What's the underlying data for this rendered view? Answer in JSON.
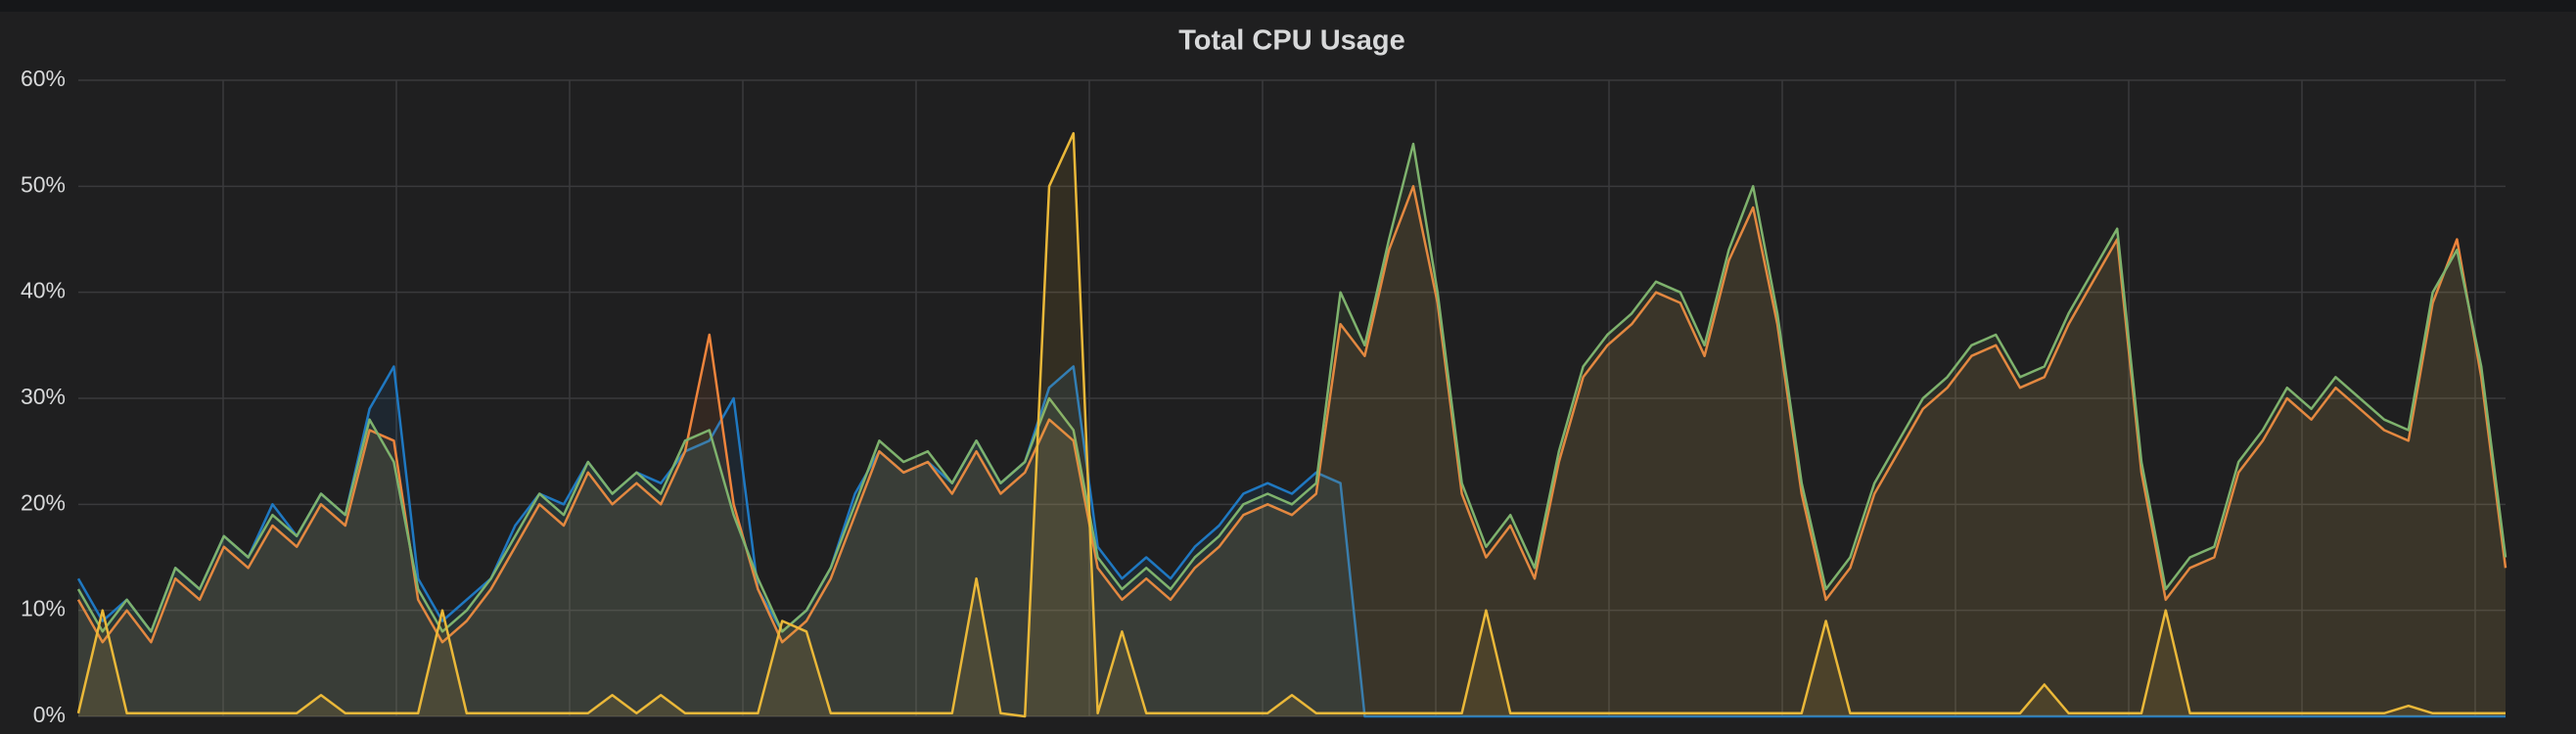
{
  "chart_data": {
    "type": "line",
    "title": "Total CPU Usage",
    "ylim": [
      0,
      60
    ],
    "yticks": [
      {
        "value": 0,
        "label": "0%"
      },
      {
        "value": 10,
        "label": "10%"
      },
      {
        "value": 20,
        "label": "20%"
      },
      {
        "value": 30,
        "label": "30%"
      },
      {
        "value": 40,
        "label": "40%"
      },
      {
        "value": 50,
        "label": "50%"
      },
      {
        "value": 60,
        "label": "60%"
      }
    ],
    "grid": true,
    "fill": true,
    "series": [
      {
        "color": "#1f78c1",
        "values": [
          13,
          9,
          11,
          8,
          14,
          12,
          17,
          15,
          20,
          17,
          21,
          19,
          29,
          33,
          13,
          9,
          11,
          13,
          18,
          21,
          20,
          24,
          21,
          23,
          22,
          25,
          26,
          30,
          12,
          8,
          10,
          14,
          21,
          25,
          23,
          24,
          22,
          26,
          22,
          24,
          31,
          33,
          16,
          13,
          15,
          13,
          16,
          18,
          21,
          22,
          21,
          23,
          22,
          0,
          0,
          0,
          0,
          0,
          0,
          0,
          0,
          0,
          0,
          0,
          0,
          0,
          0,
          0,
          0,
          0,
          0,
          0,
          0,
          0,
          0,
          0,
          0,
          0,
          0,
          0,
          0,
          0,
          0,
          0,
          0,
          0,
          0,
          0,
          0,
          0,
          0,
          0,
          0,
          0,
          0,
          0,
          0,
          0,
          0,
          0,
          0
        ]
      },
      {
        "color": "#ef843c",
        "values": [
          11,
          7,
          10,
          7,
          13,
          11,
          16,
          14,
          18,
          16,
          20,
          18,
          27,
          26,
          11,
          7,
          9,
          12,
          16,
          20,
          18,
          23,
          20,
          22,
          20,
          25,
          36,
          20,
          12,
          7,
          9,
          13,
          19,
          25,
          23,
          24,
          21,
          25,
          21,
          23,
          28,
          26,
          14,
          11,
          13,
          11,
          14,
          16,
          19,
          20,
          19,
          21,
          37,
          34,
          44,
          50,
          39,
          21,
          15,
          18,
          13,
          24,
          32,
          35,
          37,
          40,
          39,
          34,
          43,
          48,
          37,
          21,
          11,
          14,
          21,
          25,
          29,
          31,
          34,
          35,
          31,
          32,
          37,
          41,
          45,
          23,
          11,
          14,
          15,
          23,
          26,
          30,
          28,
          31,
          29,
          27,
          26,
          39,
          45,
          32,
          14
        ]
      },
      {
        "color": "#7eb26d",
        "values": [
          12,
          8,
          11,
          8,
          14,
          12,
          17,
          15,
          19,
          17,
          21,
          19,
          28,
          24,
          12,
          8,
          10,
          13,
          17,
          21,
          19,
          24,
          21,
          23,
          21,
          26,
          27,
          19,
          13,
          8,
          10,
          14,
          20,
          26,
          24,
          25,
          22,
          26,
          22,
          24,
          30,
          27,
          15,
          12,
          14,
          12,
          15,
          17,
          20,
          21,
          20,
          22,
          40,
          35,
          45,
          54,
          40,
          22,
          16,
          19,
          14,
          25,
          33,
          36,
          38,
          41,
          40,
          35,
          44,
          50,
          38,
          22,
          12,
          15,
          22,
          26,
          30,
          32,
          35,
          36,
          32,
          33,
          38,
          42,
          46,
          24,
          12,
          15,
          16,
          24,
          27,
          31,
          29,
          32,
          30,
          28,
          27,
          40,
          44,
          33,
          15
        ]
      },
      {
        "color": "#eab839",
        "values": [
          0.3,
          10,
          0.3,
          0.3,
          0.3,
          0.3,
          0.3,
          0.3,
          0.3,
          0.3,
          2,
          0.3,
          0.3,
          0.3,
          0.3,
          10,
          0.3,
          0.3,
          0.3,
          0.3,
          0.3,
          0.3,
          2,
          0.3,
          2,
          0.3,
          0.3,
          0.3,
          0.3,
          9,
          8,
          0.3,
          0.3,
          0.3,
          0.3,
          0.3,
          0.3,
          13,
          0.3,
          0,
          50,
          55,
          0.3,
          8,
          0.3,
          0.3,
          0.3,
          0.3,
          0.3,
          0.3,
          2,
          0.3,
          0.3,
          0.3,
          0.3,
          0.3,
          0.3,
          0.3,
          10,
          0.3,
          0.3,
          0.3,
          0.3,
          0.3,
          0.3,
          0.3,
          0.3,
          0.3,
          0.3,
          0.3,
          0.3,
          0.3,
          9,
          0.3,
          0.3,
          0.3,
          0.3,
          0.3,
          0.3,
          0.3,
          0.3,
          3,
          0.3,
          0.3,
          0.3,
          0.3,
          10,
          0.3,
          0.3,
          0.3,
          0.3,
          0.3,
          0.3,
          0.3,
          0.3,
          0.3,
          1,
          0.3,
          0.3,
          0.3,
          0.3
        ]
      }
    ]
  }
}
